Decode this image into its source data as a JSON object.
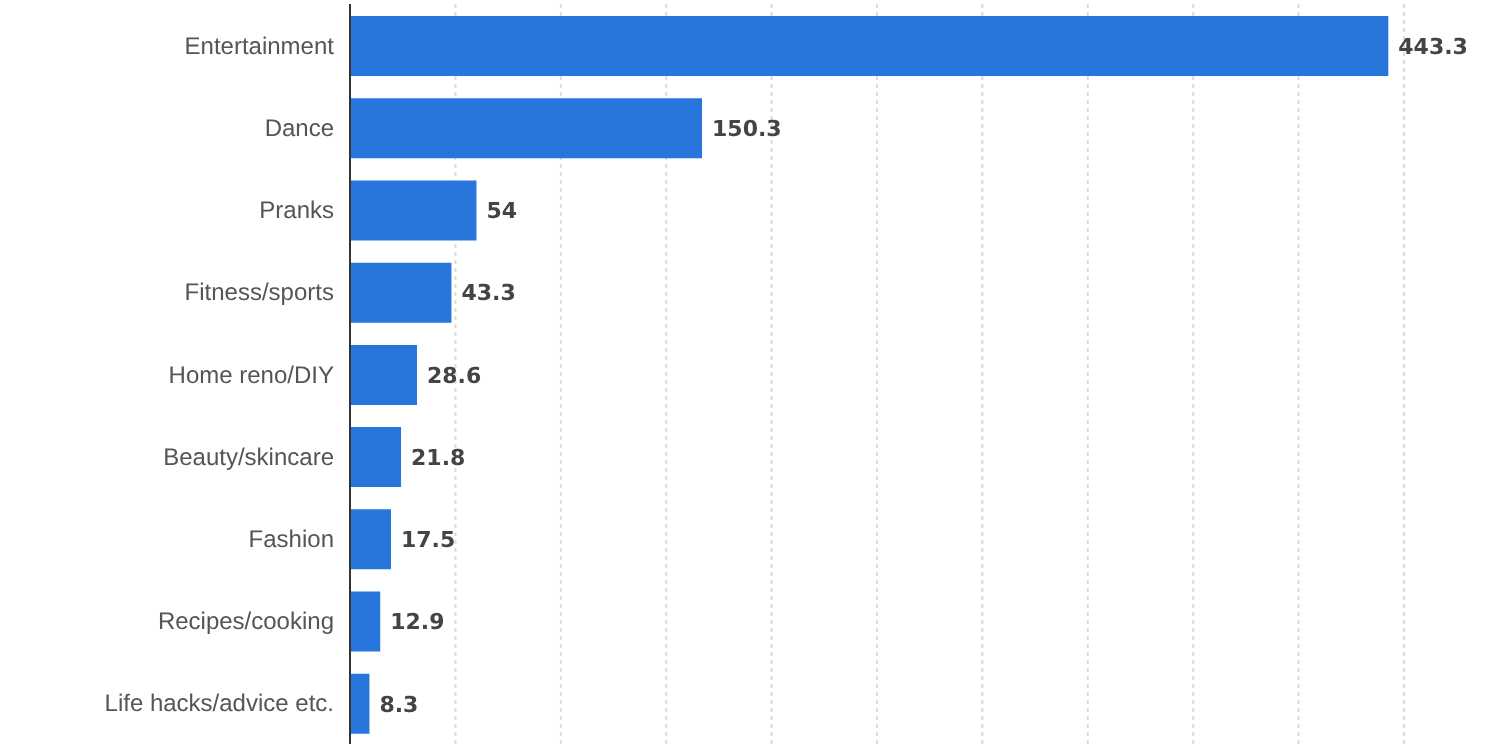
{
  "chart_data": {
    "type": "bar",
    "orientation": "horizontal",
    "categories": [
      "Entertainment",
      "Dance",
      "Pranks",
      "Fitness/sports",
      "Home reno/DIY",
      "Beauty/skincare",
      "Fashion",
      "Recipes/cooking",
      "Life hacks/advice etc."
    ],
    "values": [
      443.3,
      150.3,
      54,
      43.3,
      28.6,
      21.8,
      17.5,
      12.9,
      8.3
    ],
    "color": "#2875dc",
    "tick_labels": "y",
    "grid": "x",
    "data_labels": true
  }
}
